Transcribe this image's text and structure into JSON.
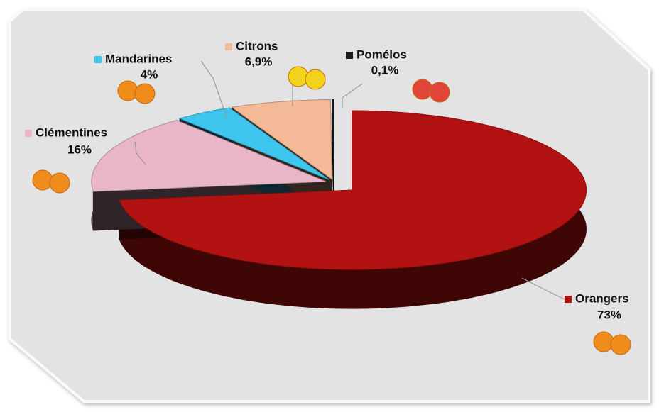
{
  "chart_data": {
    "type": "pie",
    "categories": [
      "Orangers",
      "Clémentines",
      "Mandarines",
      "Citrons",
      "Pomélos"
    ],
    "values": [
      73,
      16,
      4,
      6.9,
      0.1
    ],
    "value_labels": [
      "73%",
      "16%",
      "4%",
      "6,9%",
      "0,1%"
    ],
    "colors": [
      "#b31212",
      "#e9b6c9",
      "#3fc6ee",
      "#f4b997",
      "#1b1b1b"
    ]
  }
}
